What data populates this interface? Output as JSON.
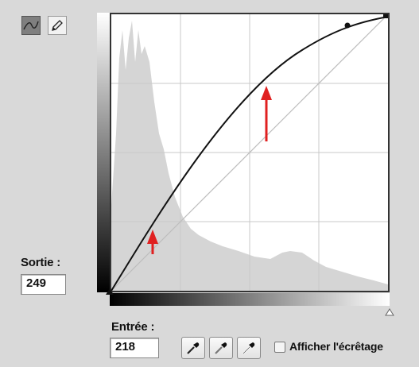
{
  "tools": [
    {
      "name": "curve-mode",
      "icon": "curve-icon",
      "selected": true
    },
    {
      "name": "pencil-mode",
      "icon": "pencil-icon",
      "selected": false
    }
  ],
  "output": {
    "label": "Sortie :",
    "value": "249"
  },
  "input": {
    "label": "Entrée :",
    "value": "218"
  },
  "eyedroppers": [
    "black-eyedropper-icon",
    "gray-eyedropper-icon",
    "white-eyedropper-icon"
  ],
  "clipping": {
    "label": "Afficher l'écrêtage",
    "checked": false
  },
  "curve": {
    "points": [
      [
        0,
        0
      ],
      [
        218,
        249
      ],
      [
        255,
        255
      ]
    ],
    "accent": "#e02020"
  }
}
